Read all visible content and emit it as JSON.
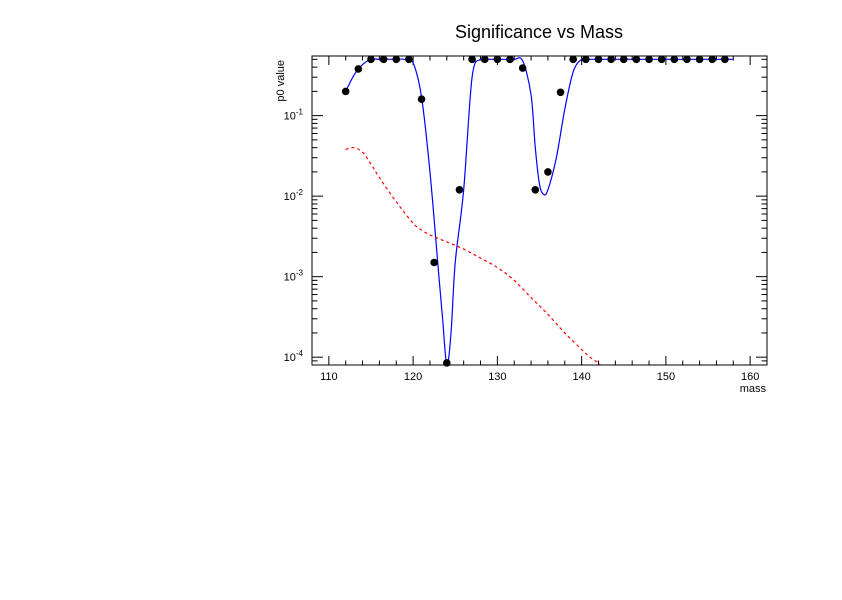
{
  "chart_data": {
    "type": "scatter",
    "title": "Significance vs Mass",
    "xlabel": "mass",
    "ylabel": "p0 value",
    "xlim": [
      108,
      162
    ],
    "ylim": [
      8e-05,
      0.55
    ],
    "yscale": "log",
    "grid": false,
    "x_ticks": [
      {
        "value": 110,
        "label": "110"
      },
      {
        "value": 120,
        "label": "120"
      },
      {
        "value": 130,
        "label": "130"
      },
      {
        "value": 140,
        "label": "140"
      },
      {
        "value": 150,
        "label": "150"
      },
      {
        "value": 160,
        "label": "160"
      }
    ],
    "y_ticks": [
      {
        "value": 0.1,
        "base": "10",
        "exp": "-1"
      },
      {
        "value": 0.01,
        "base": "10",
        "exp": "-2"
      },
      {
        "value": 0.001,
        "base": "10",
        "exp": "-3"
      },
      {
        "value": 0.0001,
        "base": "10",
        "exp": "-4"
      }
    ],
    "series": [
      {
        "kind": "points",
        "color": "#000000",
        "x": [
          112,
          113.5,
          115,
          116.5,
          118,
          119.5,
          121,
          122.5,
          124,
          125.5,
          127,
          128.5,
          130,
          131.5,
          133,
          134.5,
          136,
          137.5,
          139,
          140.5,
          142,
          143.5,
          145,
          146.5,
          148,
          149.5,
          151,
          152.5,
          154,
          155.5,
          157
        ],
        "y": [
          0.2,
          0.38,
          0.5,
          0.5,
          0.5,
          0.5,
          0.16,
          0.0015,
          8.5e-05,
          0.012,
          0.5,
          0.5,
          0.5,
          0.5,
          0.39,
          0.012,
          0.02,
          0.195,
          0.5,
          0.5,
          0.5,
          0.5,
          0.5,
          0.5,
          0.5,
          0.5,
          0.5,
          0.5,
          0.5,
          0.5,
          0.5
        ]
      },
      {
        "kind": "smooth-line",
        "color": "#0000ff",
        "x": [
          112,
          113,
          114,
          115,
          116,
          117,
          118,
          119,
          120,
          121,
          122,
          123,
          123.5,
          124,
          124.5,
          125,
          126,
          127,
          128,
          129,
          130,
          131,
          132,
          133,
          134,
          134.5,
          135,
          135.5,
          136,
          137,
          138,
          139,
          140,
          141,
          142,
          145,
          150,
          155,
          158
        ],
        "y": [
          0.2,
          0.32,
          0.43,
          0.5,
          0.5,
          0.5,
          0.5,
          0.5,
          0.45,
          0.17,
          0.02,
          0.0012,
          0.0003,
          8e-05,
          0.0002,
          0.0015,
          0.012,
          0.3,
          0.5,
          0.5,
          0.5,
          0.5,
          0.5,
          0.48,
          0.18,
          0.04,
          0.014,
          0.0105,
          0.012,
          0.03,
          0.12,
          0.35,
          0.5,
          0.5,
          0.5,
          0.5,
          0.5,
          0.5,
          0.5
        ]
      },
      {
        "kind": "dashed-line",
        "color": "#ff0000",
        "x": [
          112,
          113,
          114,
          115,
          116,
          118,
          120,
          121,
          122,
          124,
          126,
          128,
          130,
          132,
          134,
          136,
          138,
          140,
          141,
          142,
          142.2
        ],
        "y": [
          0.038,
          0.04,
          0.035,
          0.025,
          0.017,
          0.0085,
          0.0046,
          0.0038,
          0.0033,
          0.0027,
          0.0022,
          0.0017,
          0.0013,
          0.0009,
          0.00055,
          0.00034,
          0.0002,
          0.000125,
          0.0001,
          8.5e-05,
          8e-05
        ]
      }
    ]
  }
}
